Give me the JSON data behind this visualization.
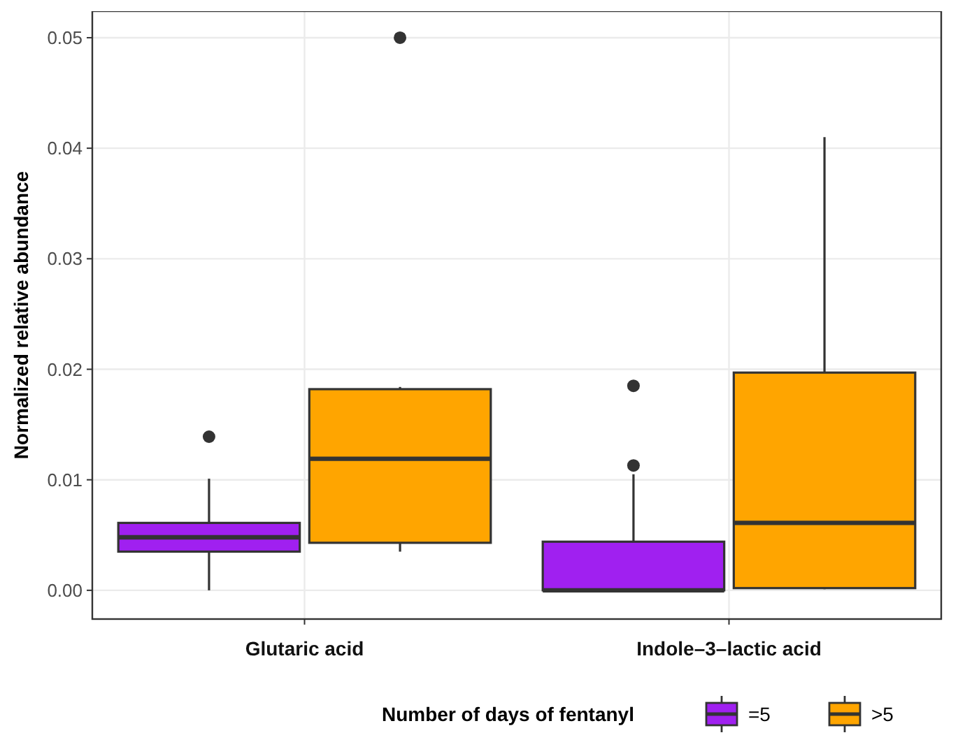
{
  "chart_data": {
    "type": "box",
    "ylabel": "Normalized relative abundance",
    "legend_title": "Number of days of fentanyl",
    "categories": [
      "Glutaric acid",
      "Indole–3–lactic acid"
    ],
    "ylim": [
      -0.0026,
      0.0524
    ],
    "yticks": [
      {
        "value": 0,
        "label": "0.00"
      },
      {
        "value": 0.01,
        "label": "0.01"
      },
      {
        "value": 0.02,
        "label": "0.02"
      },
      {
        "value": 0.03,
        "label": "0.03"
      },
      {
        "value": 0.04,
        "label": "0.04"
      },
      {
        "value": 0.05,
        "label": "0.05"
      }
    ],
    "grid": true,
    "legend": "bottom",
    "series": [
      {
        "name": "=5",
        "color": "#a020f0",
        "boxes": [
          {
            "low": 0,
            "q1": 0.0035,
            "median": 0.0048,
            "q3": 0.0061,
            "high": 0.0101,
            "outliers": [
              0.0139
            ]
          },
          {
            "low": 0,
            "q1": 0,
            "median": 0,
            "q3": 0.0044,
            "high": 0.0105,
            "outliers": [
              0.0113,
              0.0185
            ]
          }
        ]
      },
      {
        "name": ">5",
        "color": "#ffa500",
        "boxes": [
          {
            "low": 0.0035,
            "q1": 0.0043,
            "median": 0.0119,
            "q3": 0.0182,
            "high": 0.0184,
            "outliers": [
              0.05
            ]
          },
          {
            "low": 0.0001,
            "q1": 0.0002,
            "median": 0.0061,
            "q3": 0.0197,
            "high": 0.041
          }
        ]
      }
    ]
  }
}
